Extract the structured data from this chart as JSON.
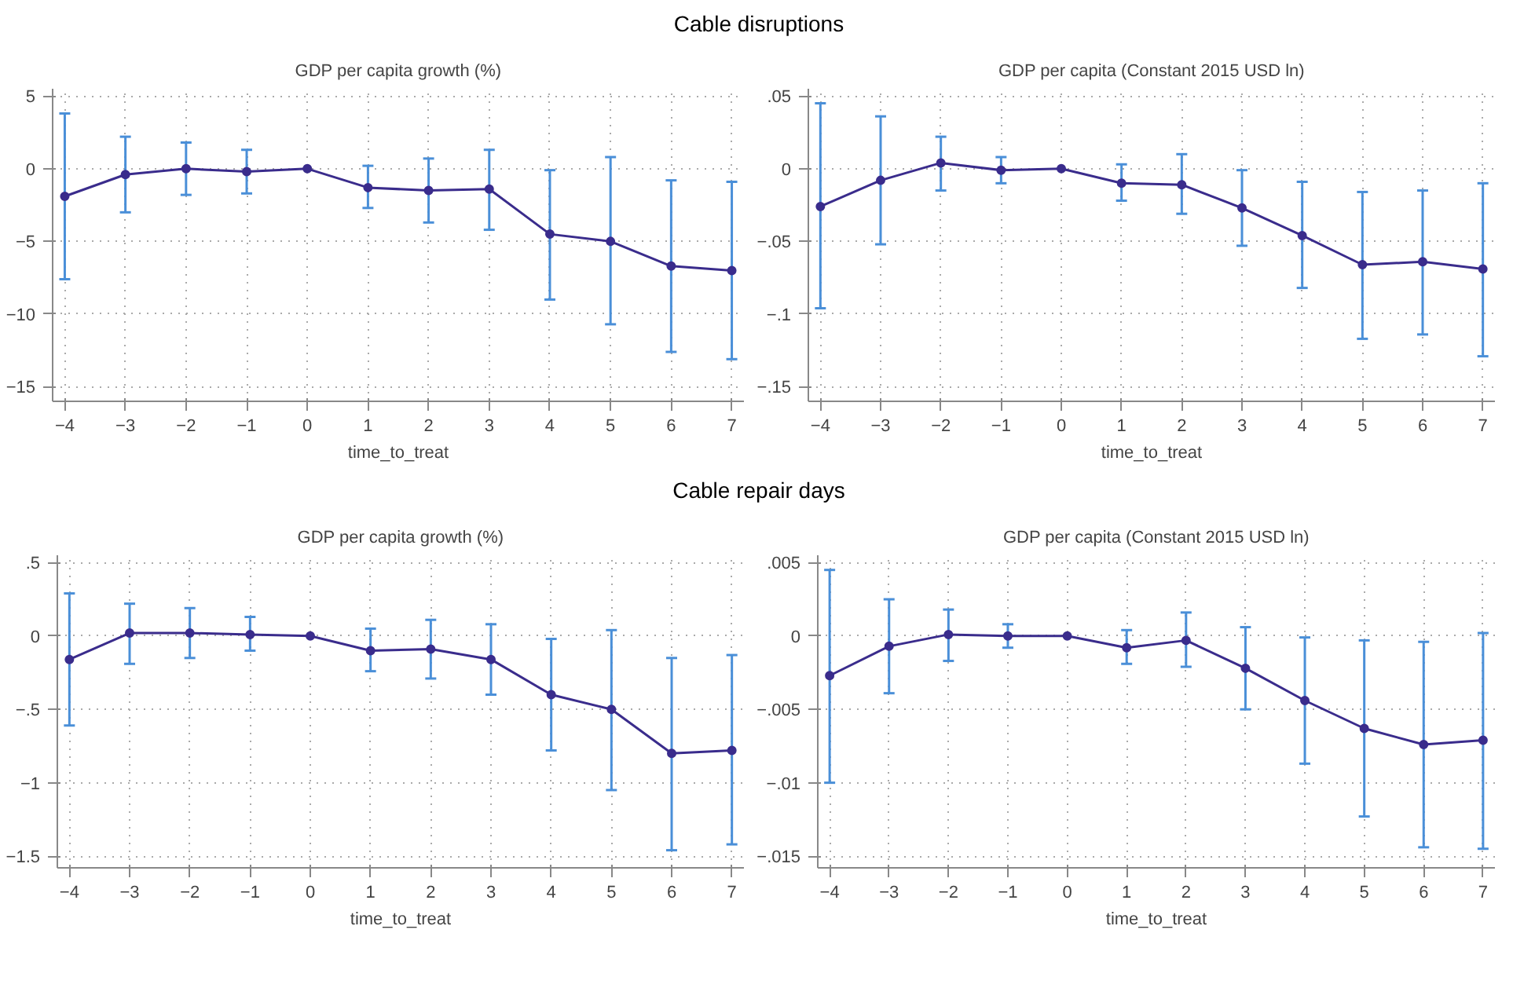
{
  "chart_data": [
    {
      "type": "line",
      "title": "Cable disruptions",
      "subtitle": "GDP per capita growth (%)",
      "xlabel": "time_to_treat",
      "marker": "circle",
      "grid": true,
      "x": [
        -4,
        -3,
        -2,
        -1,
        0,
        1,
        2,
        3,
        4,
        5,
        6,
        7
      ],
      "xlim": [
        -4.2,
        7.2
      ],
      "xticks": [
        {
          "value": -4,
          "label": "−4"
        },
        {
          "value": -3,
          "label": "−3"
        },
        {
          "value": -2,
          "label": "−2"
        },
        {
          "value": -1,
          "label": "−1"
        },
        0,
        1,
        2,
        3,
        4,
        5,
        6,
        7
      ],
      "ylim": [
        -16,
        5.5
      ],
      "yticks": [
        {
          "value": -15,
          "label": "−15"
        },
        {
          "value": -10,
          "label": "−10"
        },
        {
          "value": -5,
          "label": "−5"
        },
        {
          "value": 0,
          "label": "0"
        },
        {
          "value": 5,
          "label": "5"
        }
      ],
      "series": [
        {
          "color": "#3a2c8c",
          "values": [
            -1.9,
            -0.4,
            0.0,
            -0.2,
            0.0,
            -1.3,
            -1.5,
            -1.4,
            -4.5,
            -5.0,
            -6.7,
            -7.0
          ],
          "errors": [
            [
              -7.6,
              3.8
            ],
            [
              -3.0,
              2.2
            ],
            [
              -1.8,
              1.8
            ],
            [
              -1.7,
              1.3
            ],
            null,
            [
              -2.7,
              0.2
            ],
            [
              -3.7,
              0.7
            ],
            [
              -4.2,
              1.3
            ],
            [
              -9.0,
              -0.1
            ],
            [
              -10.7,
              0.8
            ],
            [
              -12.6,
              -0.8
            ],
            [
              -13.1,
              -0.9
            ]
          ]
        }
      ]
    },
    {
      "type": "line",
      "subtitle": "GDP per capita (Constant 2015 USD ln)",
      "xlabel": "time_to_treat",
      "marker": "circle",
      "grid": true,
      "x": [
        -4,
        -3,
        -2,
        -1,
        0,
        1,
        2,
        3,
        4,
        5,
        6,
        7
      ],
      "xlim": [
        -4.2,
        7.2
      ],
      "xticks": [
        {
          "value": -4,
          "label": "−4"
        },
        {
          "value": -3,
          "label": "−3"
        },
        {
          "value": -2,
          "label": "−2"
        },
        {
          "value": -1,
          "label": "−1"
        },
        0,
        1,
        2,
        3,
        4,
        5,
        6,
        7
      ],
      "ylim": [
        -0.16,
        0.055
      ],
      "yticks": [
        {
          "value": -0.15,
          "label": "−.15"
        },
        {
          "value": -0.1,
          "label": "−.1"
        },
        {
          "value": -0.05,
          "label": "−.05"
        },
        {
          "value": 0,
          "label": "0"
        },
        {
          "value": 0.05,
          "label": ".05"
        }
      ],
      "series": [
        {
          "color": "#3a2c8c",
          "values": [
            -0.026,
            -0.008,
            0.004,
            -0.001,
            0.0,
            -0.01,
            -0.011,
            -0.027,
            -0.046,
            -0.066,
            -0.064,
            -0.069
          ],
          "errors": [
            [
              -0.096,
              0.045
            ],
            [
              -0.052,
              0.036
            ],
            [
              -0.015,
              0.022
            ],
            [
              -0.01,
              0.008
            ],
            null,
            [
              -0.022,
              0.003
            ],
            [
              -0.031,
              0.01
            ],
            [
              -0.053,
              -0.001
            ],
            [
              -0.082,
              -0.009
            ],
            [
              -0.117,
              -0.016
            ],
            [
              -0.114,
              -0.015
            ],
            [
              -0.129,
              -0.01
            ]
          ]
        }
      ]
    },
    {
      "type": "line",
      "title": "Cable repair days",
      "subtitle": "GDP per capita growth (%)",
      "xlabel": "time_to_treat",
      "marker": "circle",
      "grid": true,
      "x": [
        -4,
        -3,
        -2,
        -1,
        0,
        1,
        2,
        3,
        4,
        5,
        6,
        7
      ],
      "xlim": [
        -4.2,
        7.2
      ],
      "xticks": [
        {
          "value": -4,
          "label": "−4"
        },
        {
          "value": -3,
          "label": "−3"
        },
        {
          "value": -2,
          "label": "−2"
        },
        {
          "value": -1,
          "label": "−1"
        },
        0,
        1,
        2,
        3,
        4,
        5,
        6,
        7
      ],
      "ylim": [
        -1.58,
        0.55
      ],
      "yticks": [
        {
          "value": -1.5,
          "label": "−1.5"
        },
        {
          "value": -1,
          "label": "−1"
        },
        {
          "value": -0.5,
          "label": "−.5"
        },
        {
          "value": 0,
          "label": "0"
        },
        {
          "value": 0.5,
          "label": ".5"
        }
      ],
      "series": [
        {
          "color": "#3a2c8c",
          "values": [
            -0.16,
            0.02,
            0.02,
            0.01,
            0.0,
            -0.1,
            -0.09,
            -0.16,
            -0.4,
            -0.5,
            -0.8,
            -0.78
          ],
          "errors": [
            [
              -0.61,
              0.29
            ],
            [
              -0.19,
              0.22
            ],
            [
              -0.15,
              0.19
            ],
            [
              -0.1,
              0.13
            ],
            null,
            [
              -0.24,
              0.05
            ],
            [
              -0.29,
              0.11
            ],
            [
              -0.4,
              0.08
            ],
            [
              -0.78,
              -0.02
            ],
            [
              -1.05,
              0.04
            ],
            [
              -1.46,
              -0.15
            ],
            [
              -1.42,
              -0.13
            ]
          ]
        }
      ]
    },
    {
      "type": "line",
      "subtitle": "GDP per capita (Constant 2015 USD ln)",
      "xlabel": "time_to_treat",
      "marker": "circle",
      "grid": true,
      "x": [
        -4,
        -3,
        -2,
        -1,
        0,
        1,
        2,
        3,
        4,
        5,
        6,
        7
      ],
      "xlim": [
        -4.2,
        7.2
      ],
      "xticks": [
        {
          "value": -4,
          "label": "−4"
        },
        {
          "value": -3,
          "label": "−3"
        },
        {
          "value": -2,
          "label": "−2"
        },
        {
          "value": -1,
          "label": "−1"
        },
        0,
        1,
        2,
        3,
        4,
        5,
        6,
        7
      ],
      "ylim": [
        -0.0158,
        0.0055
      ],
      "yticks": [
        {
          "value": -0.015,
          "label": "−.015"
        },
        {
          "value": -0.01,
          "label": "−.01"
        },
        {
          "value": -0.005,
          "label": "−.005"
        },
        {
          "value": 0,
          "label": "0"
        },
        {
          "value": 0.005,
          "label": ".005"
        }
      ],
      "series": [
        {
          "color": "#3a2c8c",
          "values": [
            -0.0027,
            -0.0007,
            0.0001,
            0.0,
            0.0,
            -0.0008,
            -0.0003,
            -0.0022,
            -0.0044,
            -0.0063,
            -0.0074,
            -0.0071
          ],
          "errors": [
            [
              -0.01,
              0.0045
            ],
            [
              -0.0039,
              0.0025
            ],
            [
              -0.0017,
              0.0018
            ],
            [
              -0.0008,
              0.0008
            ],
            null,
            [
              -0.0019,
              0.0004
            ],
            [
              -0.0021,
              0.0016
            ],
            [
              -0.005,
              0.0006
            ],
            [
              -0.0087,
              -0.0001
            ],
            [
              -0.0123,
              -0.0003
            ],
            [
              -0.0144,
              -0.0004
            ],
            [
              -0.0145,
              0.0002
            ]
          ]
        }
      ]
    }
  ]
}
